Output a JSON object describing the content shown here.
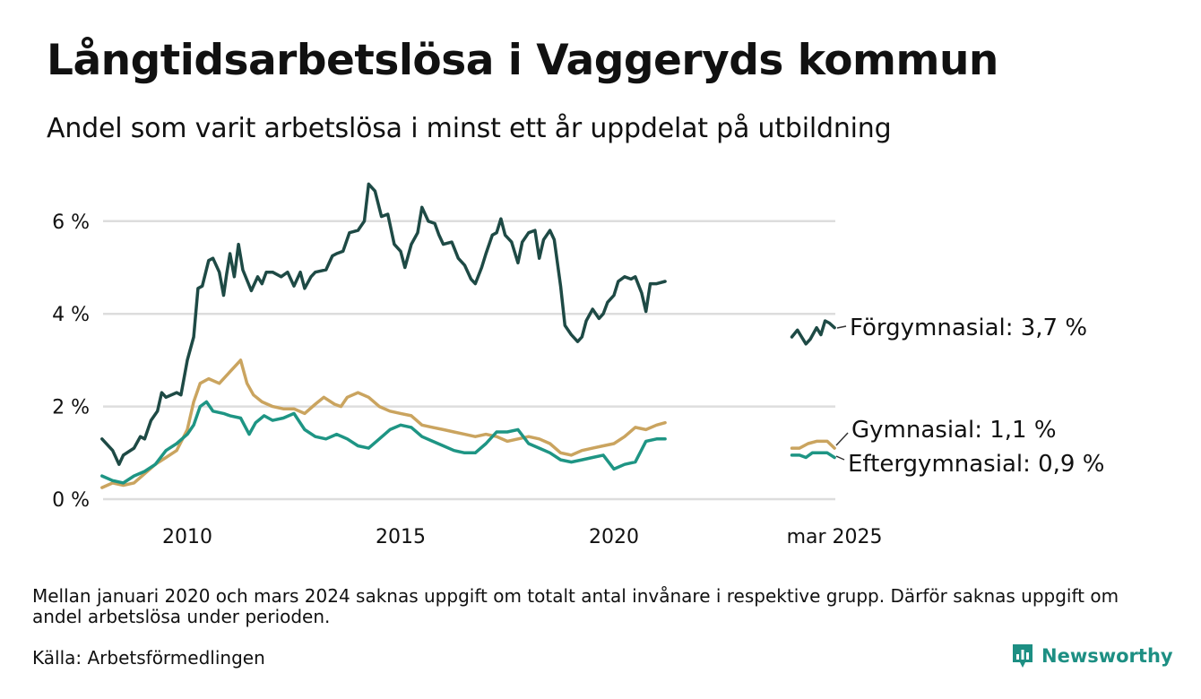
{
  "header": {
    "title": "Långtidsarbetslösa i Vaggeryds kommun",
    "subtitle": "Andel som varit arbetslösa i minst ett år uppdelat på utbildning"
  },
  "footer": {
    "note": "Mellan januari 2020 och mars 2024 saknas uppgift om totalt antal invånare i respektive grupp. Därför saknas uppgift om andel arbetslösa under perioden.",
    "source": "Källa: Arbetsförmedlingen",
    "brand": "Newsworthy",
    "brand_icon": "newsworthy-logo-icon"
  },
  "chart_data": {
    "type": "line",
    "ylim": [
      0,
      7
    ],
    "y_ticks": [
      0,
      2,
      4,
      6
    ],
    "y_tick_labels": [
      "0 %",
      "2 %",
      "4 %",
      "6 %"
    ],
    "x_tick_labels": [
      {
        "label": "2010",
        "x": 2010.0
      },
      {
        "label": "2015",
        "x": 2015.0
      },
      {
        "label": "2020",
        "x": 2020.0
      },
      {
        "label": "mar 2025",
        "x": 2025.17
      }
    ],
    "grid": true,
    "legend": "direct labels at line ends",
    "series": [
      {
        "name": "Förgymnasial",
        "end_label": "Förgymnasial: 3,7 %",
        "color": "#1e4a45",
        "segments": [
          [
            [
              2008.0,
              1.3
            ],
            [
              2008.25,
              1.05
            ],
            [
              2008.4,
              0.75
            ],
            [
              2008.5,
              0.95
            ],
            [
              2008.75,
              1.1
            ],
            [
              2008.9,
              1.35
            ],
            [
              2009.0,
              1.3
            ],
            [
              2009.15,
              1.7
            ],
            [
              2009.3,
              1.9
            ],
            [
              2009.4,
              2.3
            ],
            [
              2009.5,
              2.2
            ],
            [
              2009.75,
              2.3
            ],
            [
              2009.85,
              2.25
            ],
            [
              2010.0,
              3.0
            ],
            [
              2010.15,
              3.5
            ],
            [
              2010.25,
              4.55
            ],
            [
              2010.35,
              4.6
            ],
            [
              2010.5,
              5.15
            ],
            [
              2010.6,
              5.2
            ],
            [
              2010.75,
              4.9
            ],
            [
              2010.85,
              4.4
            ],
            [
              2010.92,
              4.85
            ],
            [
              2011.0,
              5.3
            ],
            [
              2011.1,
              4.8
            ],
            [
              2011.2,
              5.5
            ],
            [
              2011.3,
              4.95
            ],
            [
              2011.5,
              4.5
            ],
            [
              2011.65,
              4.8
            ],
            [
              2011.75,
              4.65
            ],
            [
              2011.85,
              4.9
            ],
            [
              2012.0,
              4.9
            ],
            [
              2012.2,
              4.8
            ],
            [
              2012.35,
              4.9
            ],
            [
              2012.5,
              4.6
            ],
            [
              2012.65,
              4.9
            ],
            [
              2012.75,
              4.55
            ],
            [
              2012.9,
              4.8
            ],
            [
              2013.0,
              4.9
            ],
            [
              2013.25,
              4.95
            ],
            [
              2013.4,
              5.25
            ],
            [
              2013.5,
              5.3
            ],
            [
              2013.65,
              5.35
            ],
            [
              2013.8,
              5.75
            ],
            [
              2014.0,
              5.8
            ],
            [
              2014.15,
              6.0
            ],
            [
              2014.25,
              6.8
            ],
            [
              2014.4,
              6.65
            ],
            [
              2014.55,
              6.1
            ],
            [
              2014.7,
              6.15
            ],
            [
              2014.85,
              5.5
            ],
            [
              2015.0,
              5.35
            ],
            [
              2015.1,
              5.0
            ],
            [
              2015.25,
              5.5
            ],
            [
              2015.4,
              5.75
            ],
            [
              2015.5,
              6.3
            ],
            [
              2015.65,
              6.0
            ],
            [
              2015.8,
              5.95
            ],
            [
              2015.9,
              5.7
            ],
            [
              2016.0,
              5.5
            ],
            [
              2016.2,
              5.55
            ],
            [
              2016.35,
              5.2
            ],
            [
              2016.5,
              5.05
            ],
            [
              2016.65,
              4.75
            ],
            [
              2016.75,
              4.65
            ],
            [
              2016.9,
              5.0
            ],
            [
              2017.0,
              5.3
            ],
            [
              2017.15,
              5.7
            ],
            [
              2017.25,
              5.75
            ],
            [
              2017.35,
              6.05
            ],
            [
              2017.45,
              5.7
            ],
            [
              2017.6,
              5.55
            ],
            [
              2017.75,
              5.1
            ],
            [
              2017.85,
              5.55
            ],
            [
              2018.0,
              5.75
            ],
            [
              2018.15,
              5.8
            ],
            [
              2018.25,
              5.2
            ],
            [
              2018.35,
              5.6
            ],
            [
              2018.5,
              5.8
            ],
            [
              2018.6,
              5.6
            ],
            [
              2018.75,
              4.6
            ],
            [
              2018.85,
              3.75
            ],
            [
              2019.0,
              3.55
            ],
            [
              2019.15,
              3.4
            ],
            [
              2019.25,
              3.5
            ],
            [
              2019.35,
              3.85
            ],
            [
              2019.5,
              4.1
            ],
            [
              2019.65,
              3.9
            ],
            [
              2019.75,
              4.0
            ],
            [
              2019.85,
              4.25
            ],
            [
              2020.0,
              4.4
            ],
            [
              2020.1,
              4.7
            ],
            [
              2020.25,
              4.8
            ],
            [
              2020.4,
              4.75
            ],
            [
              2020.5,
              4.8
            ],
            [
              2020.65,
              4.45
            ],
            [
              2020.75,
              4.05
            ],
            [
              2020.85,
              4.65
            ],
            [
              2021.0,
              4.65
            ],
            [
              2021.2,
              4.7
            ]
          ],
          [
            [
              2024.17,
              3.5
            ],
            [
              2024.3,
              3.65
            ],
            [
              2024.4,
              3.5
            ],
            [
              2024.5,
              3.35
            ],
            [
              2024.6,
              3.45
            ],
            [
              2024.75,
              3.7
            ],
            [
              2024.85,
              3.55
            ],
            [
              2024.95,
              3.85
            ],
            [
              2025.05,
              3.8
            ],
            [
              2025.17,
              3.7
            ]
          ]
        ]
      },
      {
        "name": "Gymnasial",
        "end_label": "Gymnasial: 1,1 %",
        "color": "#caa45f",
        "segments": [
          [
            [
              2008.0,
              0.25
            ],
            [
              2008.25,
              0.35
            ],
            [
              2008.5,
              0.3
            ],
            [
              2008.75,
              0.35
            ],
            [
              2009.0,
              0.55
            ],
            [
              2009.25,
              0.75
            ],
            [
              2009.5,
              0.9
            ],
            [
              2009.75,
              1.05
            ],
            [
              2010.0,
              1.5
            ],
            [
              2010.15,
              2.1
            ],
            [
              2010.3,
              2.5
            ],
            [
              2010.5,
              2.6
            ],
            [
              2010.75,
              2.5
            ],
            [
              2011.0,
              2.75
            ],
            [
              2011.25,
              3.0
            ],
            [
              2011.4,
              2.5
            ],
            [
              2011.55,
              2.25
            ],
            [
              2011.75,
              2.1
            ],
            [
              2012.0,
              2.0
            ],
            [
              2012.25,
              1.95
            ],
            [
              2012.5,
              1.95
            ],
            [
              2012.75,
              1.85
            ],
            [
              2013.0,
              2.05
            ],
            [
              2013.2,
              2.2
            ],
            [
              2013.45,
              2.05
            ],
            [
              2013.6,
              2.0
            ],
            [
              2013.75,
              2.2
            ],
            [
              2014.0,
              2.3
            ],
            [
              2014.25,
              2.2
            ],
            [
              2014.5,
              2.0
            ],
            [
              2014.75,
              1.9
            ],
            [
              2015.0,
              1.85
            ],
            [
              2015.25,
              1.8
            ],
            [
              2015.5,
              1.6
            ],
            [
              2015.75,
              1.55
            ],
            [
              2016.0,
              1.5
            ],
            [
              2016.25,
              1.45
            ],
            [
              2016.5,
              1.4
            ],
            [
              2016.75,
              1.35
            ],
            [
              2017.0,
              1.4
            ],
            [
              2017.25,
              1.35
            ],
            [
              2017.5,
              1.25
            ],
            [
              2017.75,
              1.3
            ],
            [
              2018.0,
              1.35
            ],
            [
              2018.25,
              1.3
            ],
            [
              2018.5,
              1.2
            ],
            [
              2018.75,
              1.0
            ],
            [
              2019.0,
              0.95
            ],
            [
              2019.25,
              1.05
            ],
            [
              2019.5,
              1.1
            ],
            [
              2019.75,
              1.15
            ],
            [
              2020.0,
              1.2
            ],
            [
              2020.25,
              1.35
            ],
            [
              2020.5,
              1.55
            ],
            [
              2020.75,
              1.5
            ],
            [
              2021.0,
              1.6
            ],
            [
              2021.2,
              1.65
            ]
          ],
          [
            [
              2024.17,
              1.1
            ],
            [
              2024.35,
              1.1
            ],
            [
              2024.55,
              1.2
            ],
            [
              2024.75,
              1.25
            ],
            [
              2025.0,
              1.25
            ],
            [
              2025.17,
              1.1
            ]
          ]
        ]
      },
      {
        "name": "Eftergymnasial",
        "end_label": "Eftergymnasial: 0,9 %",
        "color": "#1e9584",
        "segments": [
          [
            [
              2008.0,
              0.5
            ],
            [
              2008.25,
              0.4
            ],
            [
              2008.5,
              0.35
            ],
            [
              2008.75,
              0.5
            ],
            [
              2009.0,
              0.6
            ],
            [
              2009.25,
              0.75
            ],
            [
              2009.5,
              1.05
            ],
            [
              2009.75,
              1.2
            ],
            [
              2010.0,
              1.4
            ],
            [
              2010.15,
              1.6
            ],
            [
              2010.3,
              2.0
            ],
            [
              2010.45,
              2.1
            ],
            [
              2010.6,
              1.9
            ],
            [
              2010.85,
              1.85
            ],
            [
              2011.0,
              1.8
            ],
            [
              2011.25,
              1.75
            ],
            [
              2011.45,
              1.4
            ],
            [
              2011.6,
              1.65
            ],
            [
              2011.8,
              1.8
            ],
            [
              2012.0,
              1.7
            ],
            [
              2012.25,
              1.75
            ],
            [
              2012.5,
              1.85
            ],
            [
              2012.75,
              1.5
            ],
            [
              2013.0,
              1.35
            ],
            [
              2013.25,
              1.3
            ],
            [
              2013.5,
              1.4
            ],
            [
              2013.75,
              1.3
            ],
            [
              2014.0,
              1.15
            ],
            [
              2014.25,
              1.1
            ],
            [
              2014.5,
              1.3
            ],
            [
              2014.75,
              1.5
            ],
            [
              2015.0,
              1.6
            ],
            [
              2015.25,
              1.55
            ],
            [
              2015.5,
              1.35
            ],
            [
              2015.75,
              1.25
            ],
            [
              2016.0,
              1.15
            ],
            [
              2016.25,
              1.05
            ],
            [
              2016.5,
              1.0
            ],
            [
              2016.75,
              1.0
            ],
            [
              2017.0,
              1.2
            ],
            [
              2017.25,
              1.45
            ],
            [
              2017.5,
              1.45
            ],
            [
              2017.75,
              1.5
            ],
            [
              2018.0,
              1.2
            ],
            [
              2018.25,
              1.1
            ],
            [
              2018.5,
              1.0
            ],
            [
              2018.75,
              0.85
            ],
            [
              2019.0,
              0.8
            ],
            [
              2019.25,
              0.85
            ],
            [
              2019.5,
              0.9
            ],
            [
              2019.75,
              0.95
            ],
            [
              2020.0,
              0.65
            ],
            [
              2020.25,
              0.75
            ],
            [
              2020.5,
              0.8
            ],
            [
              2020.75,
              1.25
            ],
            [
              2021.0,
              1.3
            ],
            [
              2021.2,
              1.3
            ]
          ],
          [
            [
              2024.17,
              0.95
            ],
            [
              2024.35,
              0.95
            ],
            [
              2024.5,
              0.9
            ],
            [
              2024.65,
              1.0
            ],
            [
              2024.85,
              1.0
            ],
            [
              2025.0,
              1.0
            ],
            [
              2025.17,
              0.9
            ]
          ]
        ]
      }
    ]
  }
}
